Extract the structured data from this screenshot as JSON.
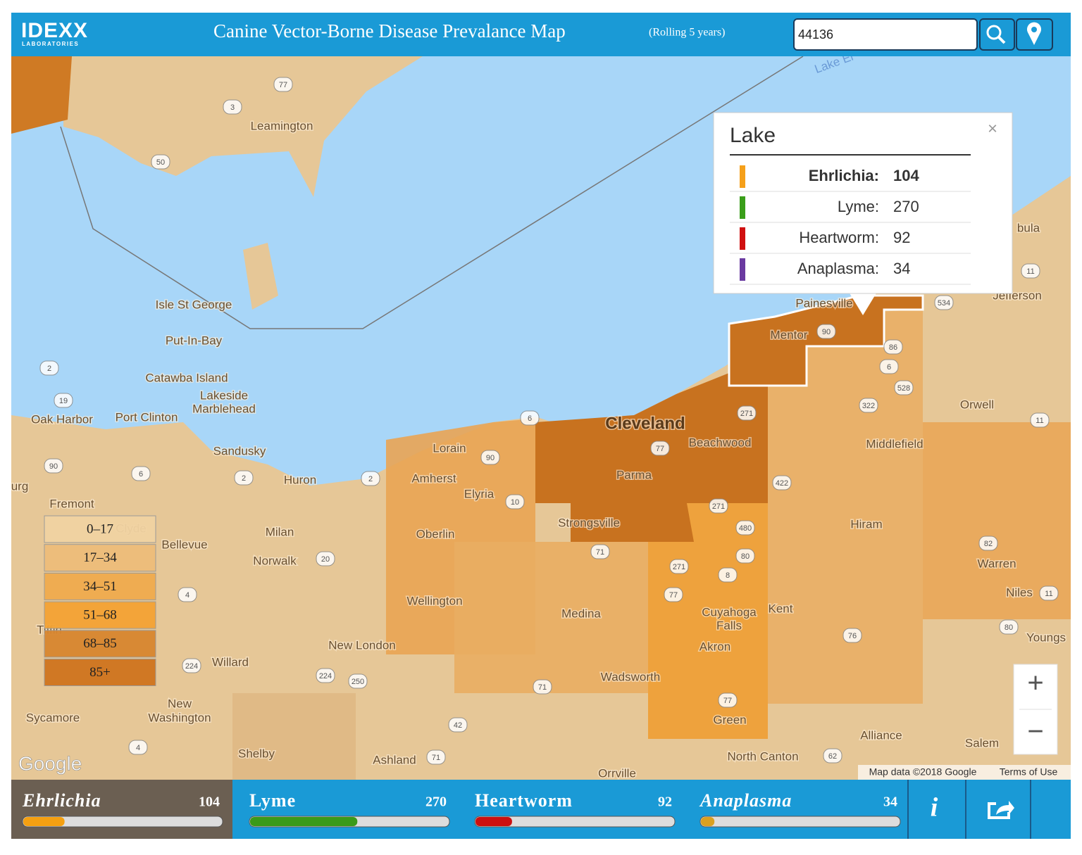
{
  "header": {
    "logo": "IDEXX",
    "logo_sub": "LABORATORIES",
    "title": "Canine Vector-Borne Disease Prevalance Map",
    "subtitle": "(Rolling 5 years)",
    "search_value": "44136"
  },
  "popup": {
    "title": "Lake",
    "close": "×",
    "rows": [
      {
        "label": "Ehrlichia:",
        "value": 104,
        "color": "#f5a01a"
      },
      {
        "label": "Lyme:",
        "value": 270,
        "color": "#3a9e1a"
      },
      {
        "label": "Heartworm:",
        "value": 92,
        "color": "#d01010"
      },
      {
        "label": "Anaplasma:",
        "value": 34,
        "color": "#6a3aa0"
      }
    ]
  },
  "legend": [
    {
      "label": "0–17",
      "color": "#f1d3a2"
    },
    {
      "label": "17–34",
      "color": "#eebd7a"
    },
    {
      "label": "34–51",
      "color": "#f0ab4e"
    },
    {
      "label": "51–68",
      "color": "#f4a334"
    },
    {
      "label": "68–85",
      "color": "#d8862f"
    },
    {
      "label": "85+",
      "color": "#cf741e"
    }
  ],
  "places": [
    "Leamington",
    "Isle St George",
    "Put-In-Bay",
    "Catawba Island",
    "Lakeside",
    "Marblehead",
    "Oak Harbor",
    "Port Clinton",
    "Sandusky",
    "Huron",
    "Lorain",
    "Amherst",
    "Elyria",
    "Fremont",
    "Clyde",
    "Bellevue",
    "Milan",
    "Norwalk",
    "Oberlin",
    "Wellington",
    "Medina",
    "Strongsville",
    "Parma",
    "Cleveland",
    "Beachwood",
    "Mentor",
    "Painesville",
    "Middlefield",
    "Orwell",
    "Hiram",
    "Warren",
    "Niles",
    "Kent",
    "Cuyahoga",
    "Falls",
    "Akron",
    "Wadsworth",
    "Green",
    "Alliance",
    "Salem",
    "North Canton",
    "Orrville",
    "Ashland",
    "Shelby",
    "New London",
    "Willard",
    "New",
    "Washington",
    "Sycamore",
    "Jefferson",
    "Youngs",
    "Tiffin",
    "bula",
    "urg",
    "Lake Er"
  ],
  "shields": [
    "77",
    "3",
    "50",
    "2",
    "19",
    "90",
    "6",
    "2",
    "2",
    "6",
    "90",
    "10",
    "20",
    "4",
    "224",
    "224",
    "250",
    "71",
    "42",
    "71",
    "4",
    "71",
    "77",
    "271",
    "480",
    "271",
    "80",
    "8",
    "271",
    "77",
    "76",
    "77",
    "62",
    "422",
    "322",
    "528",
    "6",
    "86",
    "90",
    "534",
    "11",
    "11",
    "82",
    "11",
    "80"
  ],
  "attribution": {
    "google": "Google",
    "map_data": "Map data ©2018 Google",
    "terms": "Terms of Use"
  },
  "controls": {
    "zoom_in": "+",
    "zoom_out": "−",
    "info": "i"
  },
  "tabs": [
    {
      "name": "Ehrlichia",
      "value": 104,
      "color": "#f5a011"
    },
    {
      "name": "Lyme",
      "value": 270,
      "color": "#3a9a1a"
    },
    {
      "name": "Heartworm",
      "value": 92,
      "color": "#cc1010"
    },
    {
      "name": "Anaplasma",
      "value": 34,
      "color": "#d9a020"
    }
  ]
}
